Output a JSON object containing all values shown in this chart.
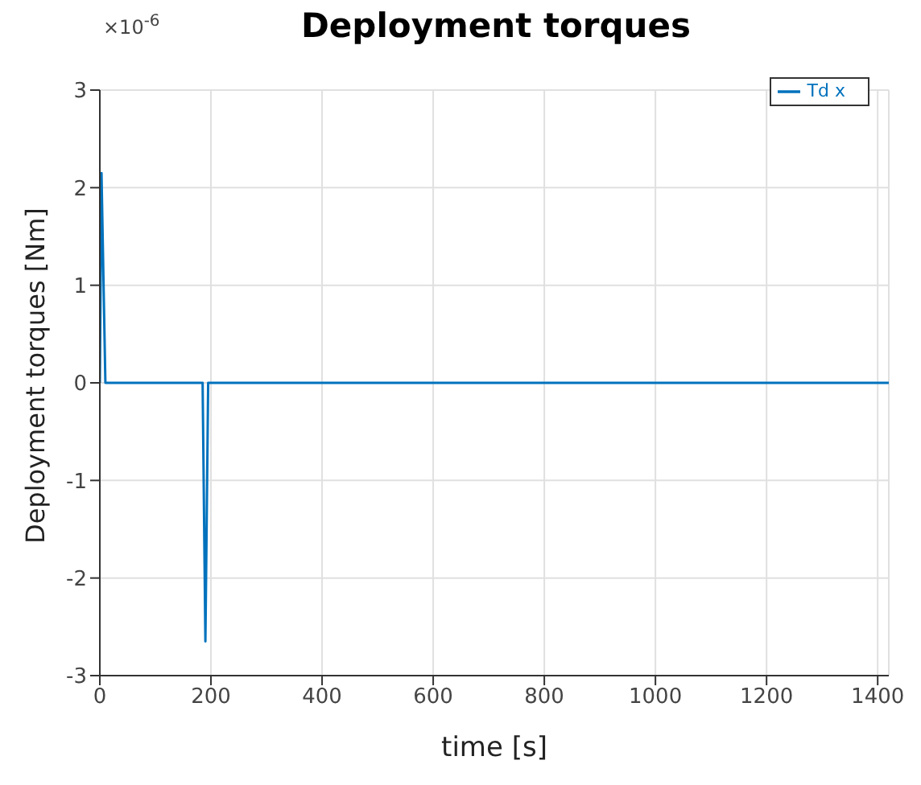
{
  "chart_data": {
    "type": "line",
    "title": "Deployment torques",
    "xlabel": "time [s]",
    "ylabel": "Deployment torques [Nm]",
    "annotations": [
      "×10$^{-6}$"
    ],
    "x": [
      0,
      3,
      10,
      185,
      190,
      195,
      1420
    ],
    "series": [
      {
        "name": "Td x",
        "color": "#0072bd",
        "values": [
          0,
          2.15,
          0,
          0,
          -2.65,
          0,
          0
        ]
      }
    ],
    "xlim": [
      0,
      1420
    ],
    "xticks": [
      0,
      200,
      400,
      600,
      800,
      1000,
      1200,
      1400
    ],
    "ylim": [
      -3,
      3
    ],
    "yticks": [
      -3,
      -2,
      -1,
      0,
      1,
      2,
      3
    ],
    "grid": true,
    "legend": "top right"
  }
}
